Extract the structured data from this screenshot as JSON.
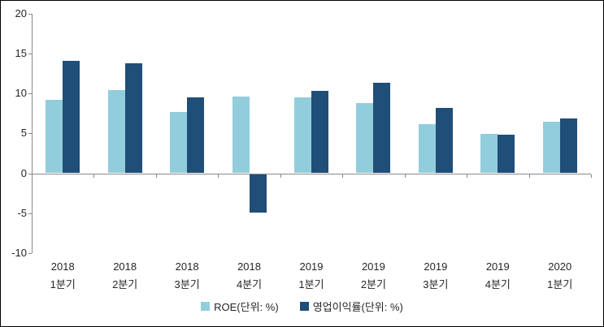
{
  "chart_data": {
    "type": "bar",
    "title": "",
    "categories": [
      {
        "year": "2018",
        "quarter": "1분기"
      },
      {
        "year": "2018",
        "quarter": "2분기"
      },
      {
        "year": "2018",
        "quarter": "3분기"
      },
      {
        "year": "2018",
        "quarter": "4분기"
      },
      {
        "year": "2019",
        "quarter": "1분기"
      },
      {
        "year": "2019",
        "quarter": "2분기"
      },
      {
        "year": "2019",
        "quarter": "3분기"
      },
      {
        "year": "2019",
        "quarter": "4분기"
      },
      {
        "year": "2020",
        "quarter": "1분기"
      }
    ],
    "series": [
      {
        "name": "ROE(단위: %)",
        "color": "#92CDDC",
        "values": [
          9.2,
          10.4,
          7.7,
          9.6,
          9.5,
          8.8,
          6.2,
          4.9,
          6.5
        ]
      },
      {
        "name": "영업이익률(단위: %)",
        "color": "#1F4E79",
        "values": [
          14.1,
          13.8,
          9.5,
          -4.8,
          10.3,
          11.4,
          8.2,
          4.8,
          6.9
        ]
      }
    ],
    "y_axis": {
      "min": -10,
      "max": 20,
      "step": 5,
      "ticks": [
        20,
        15,
        10,
        5,
        0,
        -5,
        -10
      ]
    },
    "xlabel": "",
    "ylabel": "",
    "legend_position": "bottom",
    "grid": false,
    "axis_color": "#898989",
    "background_color": "#FFFFFF",
    "border_color": "#000000"
  }
}
